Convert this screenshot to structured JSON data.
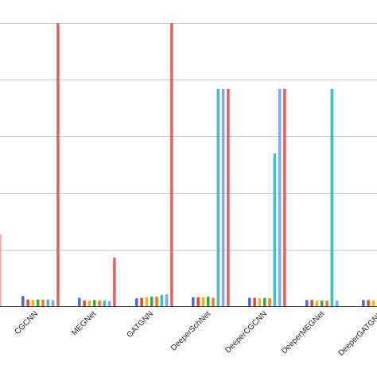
{
  "chart_data": {
    "type": "bar",
    "title": "",
    "xlabel": "",
    "ylabel": "",
    "ylim": [
      0,
      5
    ],
    "y_gridlines": [
      1,
      2,
      3,
      4,
      5
    ],
    "grid": true,
    "legend": "none",
    "categories": [
      "CGCNN",
      "MEGNet",
      "GATGNN",
      "DeeperSchNet",
      "DeeperCGCNN",
      "DeeperMEGNet",
      "DeeperGATGNN"
    ],
    "series": [
      {
        "color": "#4a6fdc",
        "values": [
          0.18,
          0.15,
          0.14,
          0.16,
          0.15,
          0.11,
          0.11
        ]
      },
      {
        "color": "#e8453c",
        "values": [
          0.12,
          0.1,
          0.15,
          0.16,
          0.15,
          0.11,
          0.11
        ]
      },
      {
        "color": "#f4b400",
        "values": [
          0.11,
          0.1,
          0.16,
          0.16,
          0.14,
          0.1,
          0.1
        ]
      },
      {
        "color": "#34a853",
        "values": [
          0.12,
          0.11,
          0.17,
          0.17,
          0.15,
          0.1,
          0.1
        ]
      },
      {
        "color": "#fa7b17",
        "values": [
          0.12,
          0.1,
          0.17,
          0.15,
          0.14,
          0.1,
          0.1
        ]
      },
      {
        "color": "#46bdc6",
        "values": [
          0.12,
          0.1,
          0.2,
          3.84,
          2.7,
          3.84,
          0.1
        ]
      },
      {
        "color": "#7baaf7",
        "values": [
          0.11,
          0.09,
          0.21,
          3.84,
          3.84,
          0.1,
          0.1
        ]
      },
      {
        "color": "#e06666",
        "values": [
          5.0,
          0.86,
          5.0,
          3.84,
          3.84,
          0.0,
          0.0
        ]
      }
    ],
    "left_partial_bar": {
      "color": "#f4a6a6",
      "value": 1.27
    }
  }
}
